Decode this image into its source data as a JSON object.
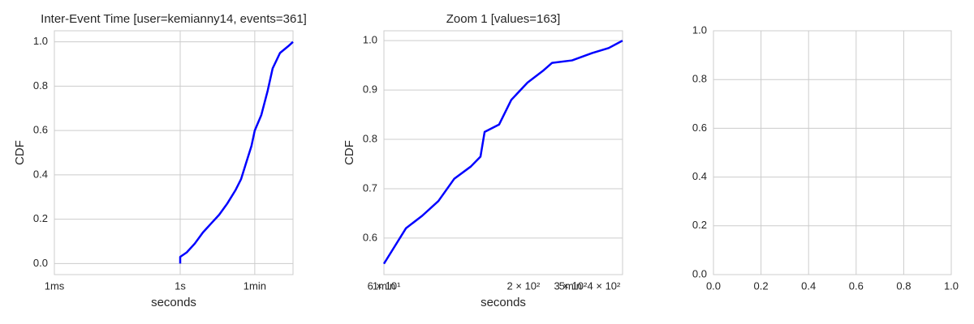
{
  "chart_data": [
    {
      "type": "line",
      "title": "Inter-Event Time [user=kemianny14, events=361]",
      "xlabel": "seconds",
      "ylabel": "CDF",
      "xscale": "log",
      "xlim": [
        0.001,
        490
      ],
      "ylim": [
        -0.05,
        1.05
      ],
      "xgrid": true,
      "ygrid": true,
      "xticks": [
        {
          "value": 0.001,
          "label": "1ms"
        },
        {
          "value": 1,
          "label": "1s"
        },
        {
          "value": 60,
          "label": "1min"
        }
      ],
      "yticks": [
        {
          "value": 0,
          "label": "0.0"
        },
        {
          "value": 0.2,
          "label": "0.2"
        },
        {
          "value": 0.4,
          "label": "0.4"
        },
        {
          "value": 0.6,
          "label": "0.6"
        },
        {
          "value": 0.8,
          "label": "0.8"
        },
        {
          "value": 1,
          "label": "1.0"
        }
      ],
      "series": [
        {
          "color": "#0000ff",
          "x": [
            1,
            1,
            1.43,
            2.23,
            3.48,
            5.43,
            8.5,
            13.2,
            20.7,
            28.2,
            36.8,
            50,
            60,
            86,
            122,
            160,
            240,
            375,
            490
          ],
          "values": [
            0,
            0.03,
            0.05,
            0.09,
            0.14,
            0.18,
            0.22,
            0.27,
            0.33,
            0.38,
            0.45,
            0.53,
            0.6,
            0.67,
            0.78,
            0.88,
            0.95,
            0.98,
            1.0
          ]
        }
      ]
    },
    {
      "type": "line",
      "title": "Zoom 1 [values=163]",
      "xlabel": "seconds",
      "ylabel": "CDF",
      "xscale": "log",
      "xlim": [
        60,
        470
      ],
      "ylim": [
        0.526,
        1.02
      ],
      "xgrid": false,
      "ygrid": true,
      "xticks": [
        {
          "value": 60,
          "label": "6 × 10¹"
        },
        {
          "value": 200,
          "label": "2 × 10²"
        },
        {
          "value": 300,
          "label": "3 × 10²"
        },
        {
          "value": 400,
          "label": "4 × 10²"
        }
      ],
      "xticks_time": [
        {
          "value": 60,
          "label": "1min"
        },
        {
          "value": 300,
          "label": "5min"
        }
      ],
      "yticks": [
        {
          "value": 0.6,
          "label": "0.6"
        },
        {
          "value": 0.7,
          "label": "0.7"
        },
        {
          "value": 0.8,
          "label": "0.8"
        },
        {
          "value": 0.9,
          "label": "0.9"
        },
        {
          "value": 1,
          "label": "1.0"
        }
      ],
      "series": [
        {
          "color": "#0000ff",
          "x": [
            60,
            65.3,
            72.6,
            83.4,
            96,
            110,
            127,
            138,
            143,
            162,
            180,
            207,
            238,
            256,
            304,
            362,
            417,
            470
          ],
          "values": [
            0.548,
            0.58,
            0.62,
            0.645,
            0.675,
            0.72,
            0.745,
            0.765,
            0.815,
            0.83,
            0.88,
            0.915,
            0.94,
            0.955,
            0.96,
            0.975,
            0.985,
            1.0
          ]
        }
      ]
    },
    {
      "type": "line",
      "xlim": [
        0,
        1
      ],
      "ylim": [
        0,
        1
      ],
      "xgrid": true,
      "ygrid": true,
      "xticks": [
        {
          "value": 0,
          "label": "0.0"
        },
        {
          "value": 0.2,
          "label": "0.2"
        },
        {
          "value": 0.4,
          "label": "0.4"
        },
        {
          "value": 0.6,
          "label": "0.6"
        },
        {
          "value": 0.8,
          "label": "0.8"
        },
        {
          "value": 1,
          "label": "1.0"
        }
      ],
      "yticks": [
        {
          "value": 0,
          "label": "0.0"
        },
        {
          "value": 0.2,
          "label": "0.2"
        },
        {
          "value": 0.4,
          "label": "0.4"
        },
        {
          "value": 0.6,
          "label": "0.6"
        },
        {
          "value": 0.8,
          "label": "0.8"
        },
        {
          "value": 1,
          "label": "1.0"
        }
      ],
      "series": []
    }
  ]
}
